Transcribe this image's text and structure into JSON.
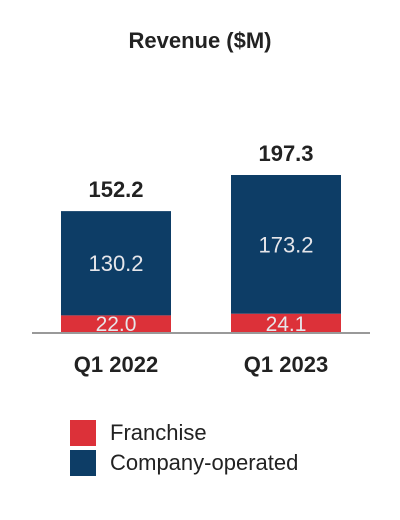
{
  "chart_data": {
    "type": "bar",
    "stacked": true,
    "title": "Revenue ($M)",
    "categories": [
      "Q1 2022",
      "Q1 2023"
    ],
    "series": [
      {
        "name": "Franchise",
        "color": "#dc3139",
        "values": [
          22.0,
          24.1
        ],
        "labels": [
          "22.0",
          "24.1"
        ]
      },
      {
        "name": "Company-operated",
        "color": "#0d3d66",
        "values": [
          130.2,
          173.2
        ],
        "labels": [
          "130.2",
          "173.2"
        ]
      }
    ],
    "totals": [
      152.2,
      197.3
    ],
    "total_labels": [
      "152.2",
      "197.3"
    ],
    "xlabel": "",
    "ylabel": "",
    "ylim": [
      0,
      197.3
    ],
    "grid": false,
    "legend_position": "bottom-left"
  }
}
